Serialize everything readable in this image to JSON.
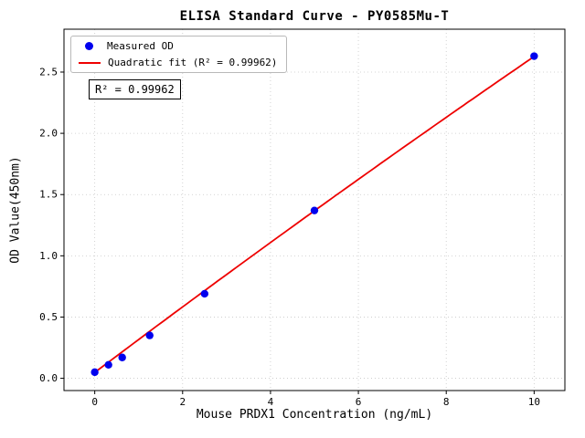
{
  "chart_data": {
    "type": "scatter",
    "title": "ELISA Standard Curve - PY0585Mu-T",
    "xlabel": "Mouse PRDX1 Concentration (ng/mL)",
    "ylabel": "OD Value(450nm)",
    "xlim": [
      -0.7,
      10.7
    ],
    "ylim": [
      -0.1,
      2.85
    ],
    "xticks": [
      0,
      2,
      4,
      6,
      8,
      10
    ],
    "yticks": [
      0.0,
      0.5,
      1.0,
      1.5,
      2.0,
      2.5
    ],
    "grid": "dotted",
    "grid_color": "#c8c8c8",
    "legend_position": "upper left",
    "series": [
      {
        "name": "Measured OD",
        "type": "scatter",
        "color": "#0000ee",
        "x": [
          0,
          0.3125,
          0.625,
          1.25,
          2.5,
          5,
          10
        ],
        "y": [
          0.05,
          0.11,
          0.17,
          0.35,
          0.69,
          1.37,
          2.63
        ]
      },
      {
        "name": "Quadratic fit (R² = 0.99962)",
        "type": "line",
        "color": "#ee0000",
        "fit": {
          "coefficients": [
            0.048,
            0.2699,
            -0.0012
          ],
          "x_range": [
            0,
            10
          ]
        }
      }
    ],
    "annotation": {
      "text": "R² = 0.99962"
    },
    "r_squared": 0.99962
  }
}
